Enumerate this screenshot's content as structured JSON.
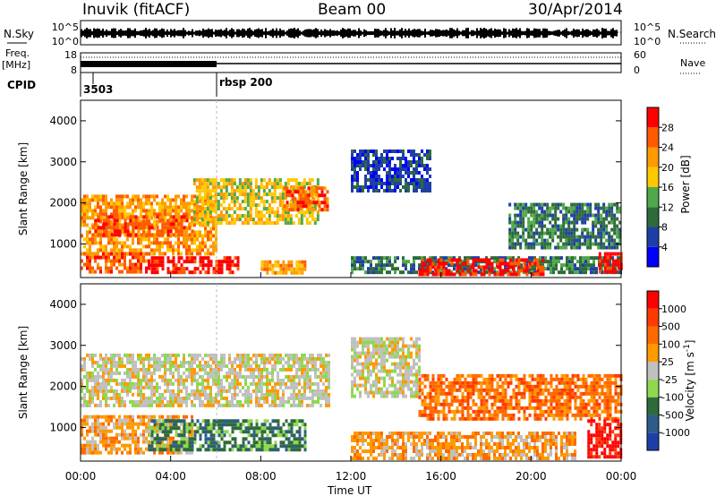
{
  "header": {
    "station": "Inuvik (fitACF)",
    "beam": "Beam 00",
    "date": "30/Apr/2014"
  },
  "strips": {
    "sky_label": "N.Sky",
    "search_label": "N.Search",
    "sky_ticks": [
      "10^5",
      "10^0"
    ],
    "sky_right_ticks": [
      "10^5",
      "10^0"
    ],
    "freq_label_line1": "Freq.",
    "freq_label_line2": "[MHz]",
    "freq_ticks": [
      "18",
      "8"
    ],
    "nave_label": "Nave",
    "nave_ticks": [
      "60",
      "0"
    ],
    "cpid_label": "CPID",
    "cpid_segments": [
      {
        "label": "3503",
        "start_hour": 0.0
      },
      {
        "label": "rbsp 200",
        "start_hour": 6.0
      }
    ]
  },
  "x_axis": {
    "title": "Time UT",
    "ticks": [
      "00:00",
      "04:00",
      "08:00",
      "12:00",
      "16:00",
      "20:00",
      "00:00"
    ],
    "tick_hours": [
      0,
      4,
      8,
      12,
      16,
      20,
      24
    ]
  },
  "colors": {
    "power": [
      "#0000ff",
      "#1f3fa8",
      "#2e6b3b",
      "#4fa84a",
      "#ffc800",
      "#ff9a00",
      "#ff5a00",
      "#ff0000"
    ],
    "velocity": [
      "#1e3fa8",
      "#2e5c8a",
      "#2e6b3b",
      "#8fd84f",
      "#c0c0c0",
      "#ff9a00",
      "#ff6a00",
      "#ff3a00",
      "#ff0000"
    ],
    "velocity_gray": "#c8c8c0"
  },
  "chart_data": [
    {
      "type": "heatmap",
      "name": "Power",
      "ylabel": "Slant Range [km]",
      "yticks": [
        "4000",
        "3000",
        "2000",
        "1000"
      ],
      "ylim": [
        180,
        4500
      ],
      "xlim": [
        0,
        24
      ],
      "colorbar": {
        "label": "Power [dB]",
        "ticks": [
          "28",
          "24",
          "20",
          "16",
          "12",
          "8",
          "4"
        ]
      },
      "regions": [
        {
          "x0": 0.0,
          "x1": 6.0,
          "y0": 800,
          "y1": 2200,
          "level": 5
        },
        {
          "x0": 0.0,
          "x1": 3.0,
          "y0": 300,
          "y1": 800,
          "level": 6
        },
        {
          "x0": 3.0,
          "x1": 7.0,
          "y0": 300,
          "y1": 700,
          "level": 7
        },
        {
          "x0": 0.5,
          "x1": 5.0,
          "y0": 1200,
          "y1": 1700,
          "level": 6
        },
        {
          "x0": 5.0,
          "x1": 10.5,
          "y0": 1500,
          "y1": 2600,
          "level": 4
        },
        {
          "x0": 8.0,
          "x1": 10.0,
          "y0": 300,
          "y1": 600,
          "level": 5
        },
        {
          "x0": 9.0,
          "x1": 11.0,
          "y0": 1800,
          "y1": 2400,
          "level": 6
        },
        {
          "x0": 12.0,
          "x1": 15.5,
          "y0": 2300,
          "y1": 3300,
          "level": 1
        },
        {
          "x0": 12.0,
          "x1": 24.0,
          "y0": 300,
          "y1": 700,
          "level": 2
        },
        {
          "x0": 15.0,
          "x1": 20.5,
          "y0": 300,
          "y1": 650,
          "level": 7
        },
        {
          "x0": 19.0,
          "x1": 24.0,
          "y0": 900,
          "y1": 2000,
          "level": 2
        },
        {
          "x0": 23.0,
          "x1": 24.0,
          "y0": 300,
          "y1": 800,
          "level": 7
        }
      ]
    },
    {
      "type": "heatmap",
      "name": "Velocity",
      "ylabel": "Slant Range [km]",
      "yticks": [
        "4000",
        "3000",
        "2000",
        "1000"
      ],
      "ylim": [
        180,
        4500
      ],
      "xlim": [
        0,
        24
      ],
      "colorbar": {
        "label": "Velocity [m s^-1]",
        "ticks": [
          "1000",
          "500",
          "100",
          "25",
          "-25",
          "-100",
          "-500",
          "-1000"
        ]
      },
      "regions": [
        {
          "x0": 0.0,
          "x1": 5.0,
          "y0": 400,
          "y1": 1300,
          "level": 5
        },
        {
          "x0": 0.0,
          "x1": 11.0,
          "y0": 1500,
          "y1": 2800,
          "level": 4
        },
        {
          "x0": 3.0,
          "x1": 10.0,
          "y0": 500,
          "y1": 1200,
          "level": 2
        },
        {
          "x0": 12.0,
          "x1": 15.0,
          "y0": 1800,
          "y1": 3200,
          "level": 4
        },
        {
          "x0": 12.0,
          "x1": 22.0,
          "y0": 250,
          "y1": 900,
          "level": 5
        },
        {
          "x0": 15.0,
          "x1": 24.0,
          "y0": 1200,
          "y1": 2300,
          "level": 6
        },
        {
          "x0": 22.5,
          "x1": 24.0,
          "y0": 300,
          "y1": 1200,
          "level": 8
        }
      ]
    }
  ]
}
